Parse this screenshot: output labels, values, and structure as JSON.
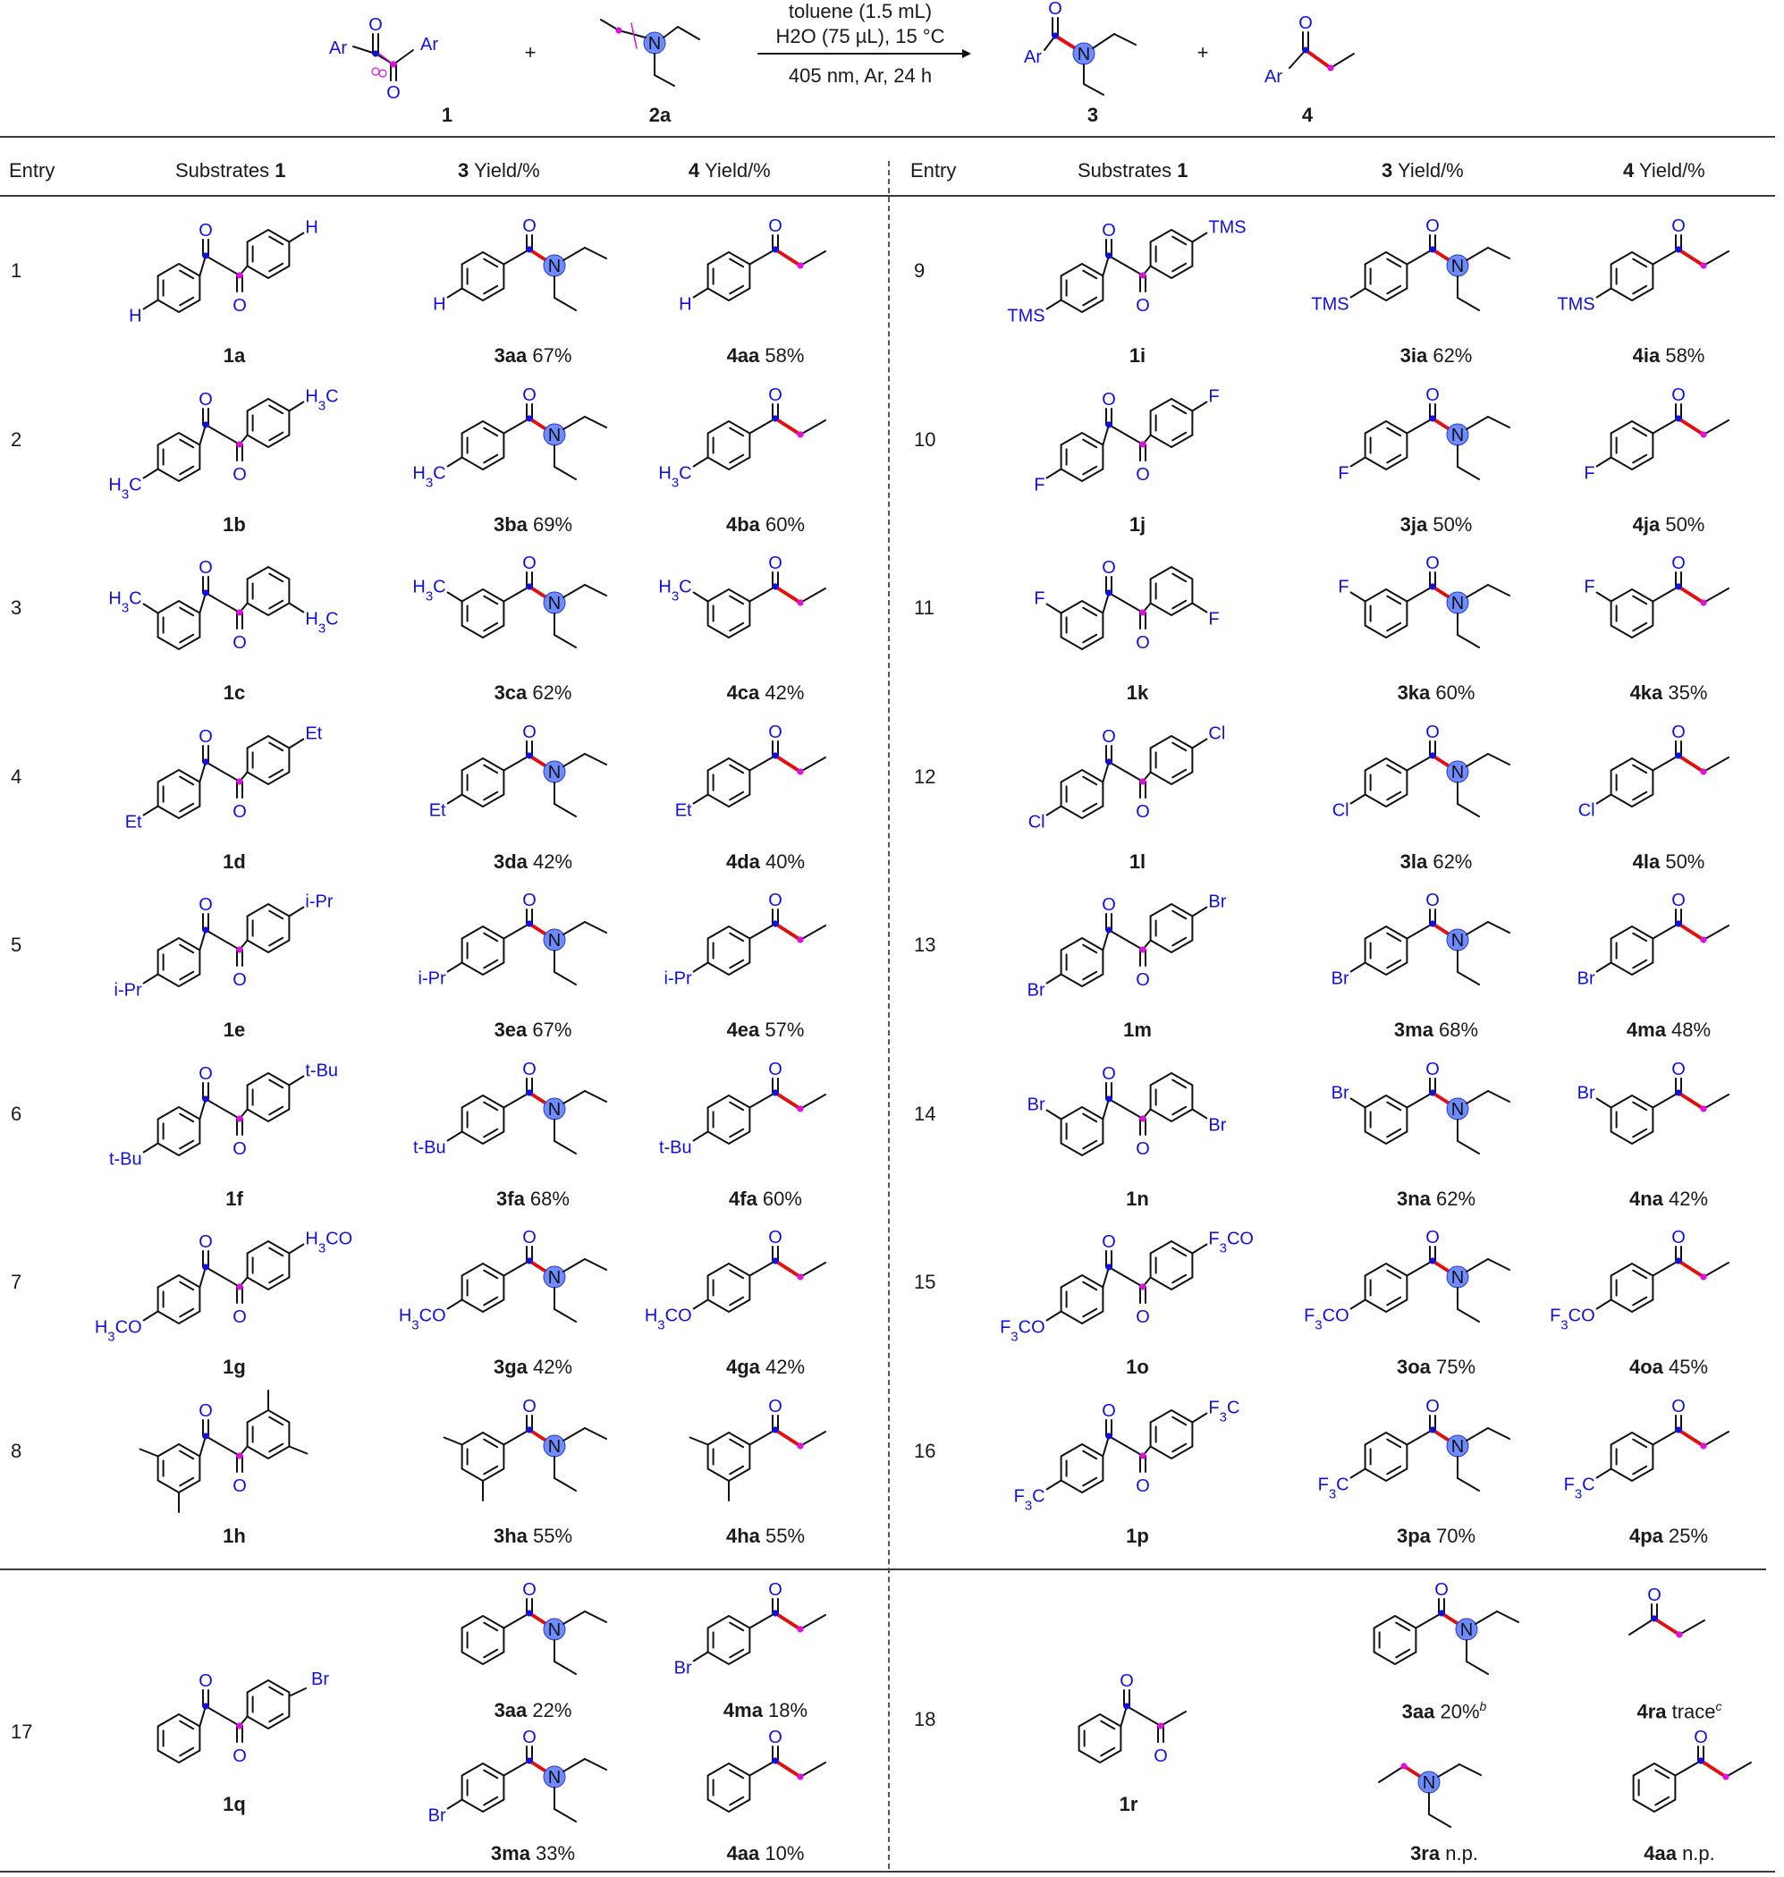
{
  "scheme": {
    "reactant1_label": "1",
    "reactant2_label": "2a",
    "product1_label": "3",
    "product2_label": "4",
    "plus": "+",
    "ar": "Ar",
    "conditions": [
      "toluene (1.5 mL)",
      "H2O (75 µL), 15 °C",
      "405 nm, Ar, 24 h"
    ]
  },
  "headers": {
    "entry": "Entry",
    "substrates_prefix": "Substrates ",
    "substrates_num": "1",
    "yield3_num": "3",
    "yield4_num": "4",
    "yield_suffix": " Yield/%"
  },
  "rows": [
    {
      "entry": "1",
      "sub": "1a",
      "p3": "3aa",
      "y3": "67%",
      "p4": "4aa",
      "y4": "58%",
      "subst": "H",
      "pos": "para"
    },
    {
      "entry": "2",
      "sub": "1b",
      "p3": "3ba",
      "y3": "69%",
      "p4": "4ba",
      "y4": "60%",
      "subst": "H3C",
      "pos": "para"
    },
    {
      "entry": "3",
      "sub": "1c",
      "p3": "3ca",
      "y3": "62%",
      "p4": "4ca",
      "y4": "42%",
      "subst": "H3C",
      "pos": "meta"
    },
    {
      "entry": "4",
      "sub": "1d",
      "p3": "3da",
      "y3": "42%",
      "p4": "4da",
      "y4": "40%",
      "subst": "Et",
      "pos": "para"
    },
    {
      "entry": "5",
      "sub": "1e",
      "p3": "3ea",
      "y3": "67%",
      "p4": "4ea",
      "y4": "57%",
      "subst": "i-Pr",
      "pos": "para"
    },
    {
      "entry": "6",
      "sub": "1f",
      "p3": "3fa",
      "y3": "68%",
      "p4": "4fa",
      "y4": "60%",
      "subst": "t-Bu",
      "pos": "para"
    },
    {
      "entry": "7",
      "sub": "1g",
      "p3": "3ga",
      "y3": "42%",
      "p4": "4ga",
      "y4": "42%",
      "subst": "H3CO",
      "pos": "para"
    },
    {
      "entry": "8",
      "sub": "1h",
      "p3": "3ha",
      "y3": "55%",
      "p4": "4ha",
      "y4": "55%",
      "subst": "",
      "pos": "dimethyl"
    },
    {
      "entry": "9",
      "sub": "1i",
      "p3": "3ia",
      "y3": "62%",
      "p4": "4ia",
      "y4": "58%",
      "subst": "TMS",
      "pos": "para"
    },
    {
      "entry": "10",
      "sub": "1j",
      "p3": "3ja",
      "y3": "50%",
      "p4": "4ja",
      "y4": "50%",
      "subst": "F",
      "pos": "para"
    },
    {
      "entry": "11",
      "sub": "1k",
      "p3": "3ka",
      "y3": "60%",
      "p4": "4ka",
      "y4": "35%",
      "subst": "F",
      "pos": "meta"
    },
    {
      "entry": "12",
      "sub": "1l",
      "p3": "3la",
      "y3": "62%",
      "p4": "4la",
      "y4": "50%",
      "subst": "Cl",
      "pos": "para"
    },
    {
      "entry": "13",
      "sub": "1m",
      "p3": "3ma",
      "y3": "68%",
      "p4": "4ma",
      "y4": "48%",
      "subst": "Br",
      "pos": "para"
    },
    {
      "entry": "14",
      "sub": "1n",
      "p3": "3na",
      "y3": "62%",
      "p4": "4na",
      "y4": "42%",
      "subst": "Br",
      "pos": "meta"
    },
    {
      "entry": "15",
      "sub": "1o",
      "p3": "3oa",
      "y3": "75%",
      "p4": "4oa",
      "y4": "45%",
      "subst": "F3CO",
      "pos": "para"
    },
    {
      "entry": "16",
      "sub": "1p",
      "p3": "3pa",
      "y3": "70%",
      "p4": "4pa",
      "y4": "25%",
      "subst": "F3C",
      "pos": "para"
    }
  ],
  "row17": {
    "entry": "17",
    "sub": "1q",
    "p3a": "3aa",
    "y3a": "22%",
    "p4a": "4ma",
    "y4a": "18%",
    "p3b": "3ma",
    "y3b": "33%",
    "p4b": "4aa",
    "y4b": "10%",
    "subst": "Br"
  },
  "row18": {
    "entry": "18",
    "sub": "1r",
    "p3a": "3aa",
    "y3a": "20%",
    "sup3a": "b",
    "p4a": "4ra",
    "y4a": "trace",
    "sup4a": "c",
    "p3b": "3ra",
    "y3b": "n.p.",
    "p4b": "4aa",
    "y4b": "n.p."
  },
  "colors": {
    "atom_blue": "#1010e0",
    "dot_blue": "#1010e0",
    "dot_magenta": "#e010e0",
    "bond_red": "#e01010",
    "n_ball": "#6f8cff"
  }
}
